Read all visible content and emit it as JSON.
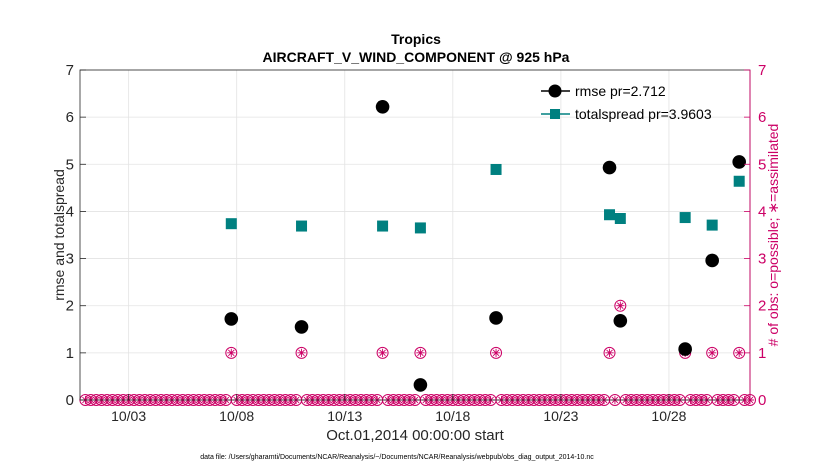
{
  "chart_data": {
    "type": "scatter",
    "title": "Tropics",
    "subtitle": "AIRCRAFT_V_WIND_COMPONENT @ 925 hPa",
    "xlabel": "Oct.01,2014 00:00:00 start",
    "ylabel": "rmse and totalspread",
    "y2label": "# of obs: o=possible; ∗=assimilated",
    "footnote": "data file: /Users/gharamti/Documents/NCAR/Reanalysis/~/Documents/NCAR/Reanalysis/webpub/obs_diag_output_2014-10.nc",
    "xlim": [
      0.75,
      31.75
    ],
    "ylim": [
      0,
      7
    ],
    "y2lim": [
      0,
      7
    ],
    "grid": true,
    "x_ticks": [
      {
        "value": 3,
        "label": "10/03"
      },
      {
        "value": 8,
        "label": "10/08"
      },
      {
        "value": 13,
        "label": "10/13"
      },
      {
        "value": 18,
        "label": "10/18"
      },
      {
        "value": 23,
        "label": "10/23"
      },
      {
        "value": 28,
        "label": "10/28"
      }
    ],
    "y_ticks": [
      0,
      1,
      2,
      3,
      4,
      5,
      6,
      7
    ],
    "y2_ticks": [
      0,
      1,
      2,
      3,
      4,
      5,
      6,
      7
    ],
    "legend_position": "top-right",
    "series": [
      {
        "name": "rmse",
        "legend": "rmse pr=2.712",
        "color": "#000000",
        "marker": "circle",
        "points": [
          {
            "x": 7.75,
            "y": 1.72
          },
          {
            "x": 11.0,
            "y": 1.55
          },
          {
            "x": 14.75,
            "y": 6.22
          },
          {
            "x": 16.5,
            "y": 0.32
          },
          {
            "x": 20.0,
            "y": 1.74
          },
          {
            "x": 25.25,
            "y": 4.93
          },
          {
            "x": 25.75,
            "y": 1.68
          },
          {
            "x": 28.75,
            "y": 1.08
          },
          {
            "x": 30.0,
            "y": 2.96
          },
          {
            "x": 31.25,
            "y": 5.05
          }
        ]
      },
      {
        "name": "totalspread",
        "legend": "totalspread pr=3.9603",
        "color": "#008080",
        "marker": "square",
        "points": [
          {
            "x": 7.75,
            "y": 3.74
          },
          {
            "x": 11.0,
            "y": 3.69
          },
          {
            "x": 14.75,
            "y": 3.69
          },
          {
            "x": 16.5,
            "y": 3.65
          },
          {
            "x": 20.0,
            "y": 4.89
          },
          {
            "x": 25.25,
            "y": 3.93
          },
          {
            "x": 25.75,
            "y": 3.85
          },
          {
            "x": 28.75,
            "y": 3.87
          },
          {
            "x": 30.0,
            "y": 3.71
          },
          {
            "x": 31.25,
            "y": 4.64
          }
        ]
      }
    ],
    "obs_counts": {
      "name": "# of obs",
      "color": "#cc0066",
      "marker": "circle-asterisk",
      "x_start": 1.0,
      "x_step": 0.25,
      "x_end": 31.75,
      "nonzero": [
        {
          "x": 7.75,
          "possible": 1,
          "assimilated": 1
        },
        {
          "x": 11.0,
          "possible": 1,
          "assimilated": 1
        },
        {
          "x": 14.75,
          "possible": 1,
          "assimilated": 1
        },
        {
          "x": 16.5,
          "possible": 1,
          "assimilated": 1
        },
        {
          "x": 20.0,
          "possible": 1,
          "assimilated": 1
        },
        {
          "x": 25.25,
          "possible": 1,
          "assimilated": 1
        },
        {
          "x": 25.75,
          "possible": 2,
          "assimilated": 2
        },
        {
          "x": 28.75,
          "possible": 1,
          "assimilated": 1
        },
        {
          "x": 30.0,
          "possible": 1,
          "assimilated": 1
        },
        {
          "x": 31.25,
          "possible": 1,
          "assimilated": 1
        }
      ]
    }
  }
}
